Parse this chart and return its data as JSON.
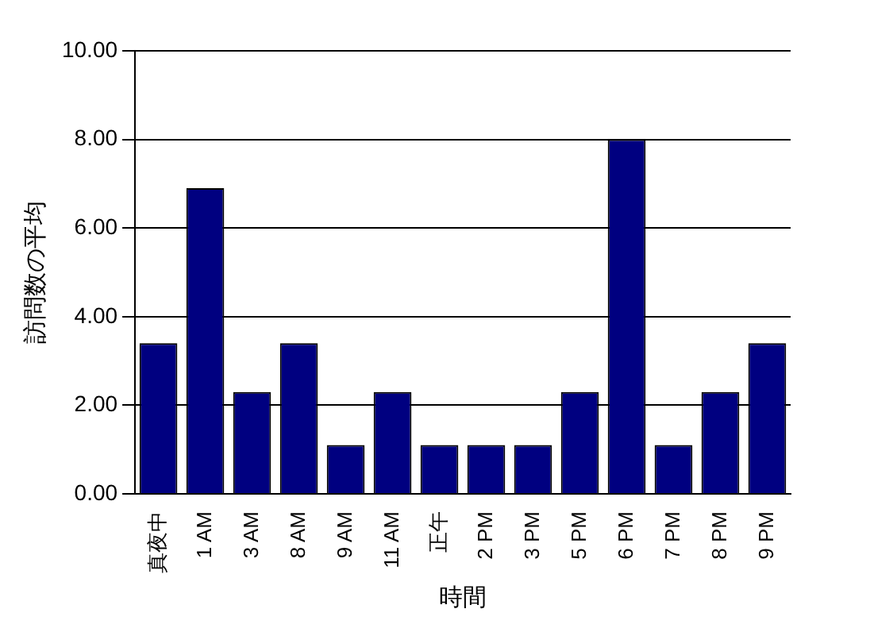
{
  "chart_data": {
    "type": "bar",
    "xlabel": "時間",
    "ylabel": "訪問数の平均",
    "categories": [
      "真夜中",
      "1 AM",
      "3 AM",
      "8 AM",
      "9 AM",
      "11 AM",
      "正午",
      "2 PM",
      "3 PM",
      "5 PM",
      "6 PM",
      "7 PM",
      "8 PM",
      "9 PM"
    ],
    "values": [
      3.4,
      6.9,
      2.3,
      3.4,
      1.1,
      2.3,
      1.1,
      1.1,
      1.1,
      2.3,
      8.0,
      1.1,
      2.3,
      3.4
    ],
    "color": "#000080",
    "ylim": [
      0,
      10
    ],
    "yticks": [
      {
        "value": 0,
        "label": "0.00"
      },
      {
        "value": 2,
        "label": "2.00"
      },
      {
        "value": 4,
        "label": "4.00"
      },
      {
        "value": 6,
        "label": "6.00"
      },
      {
        "value": 8,
        "label": "8.00"
      },
      {
        "value": 10,
        "label": "10.00"
      }
    ],
    "grid": "y"
  }
}
